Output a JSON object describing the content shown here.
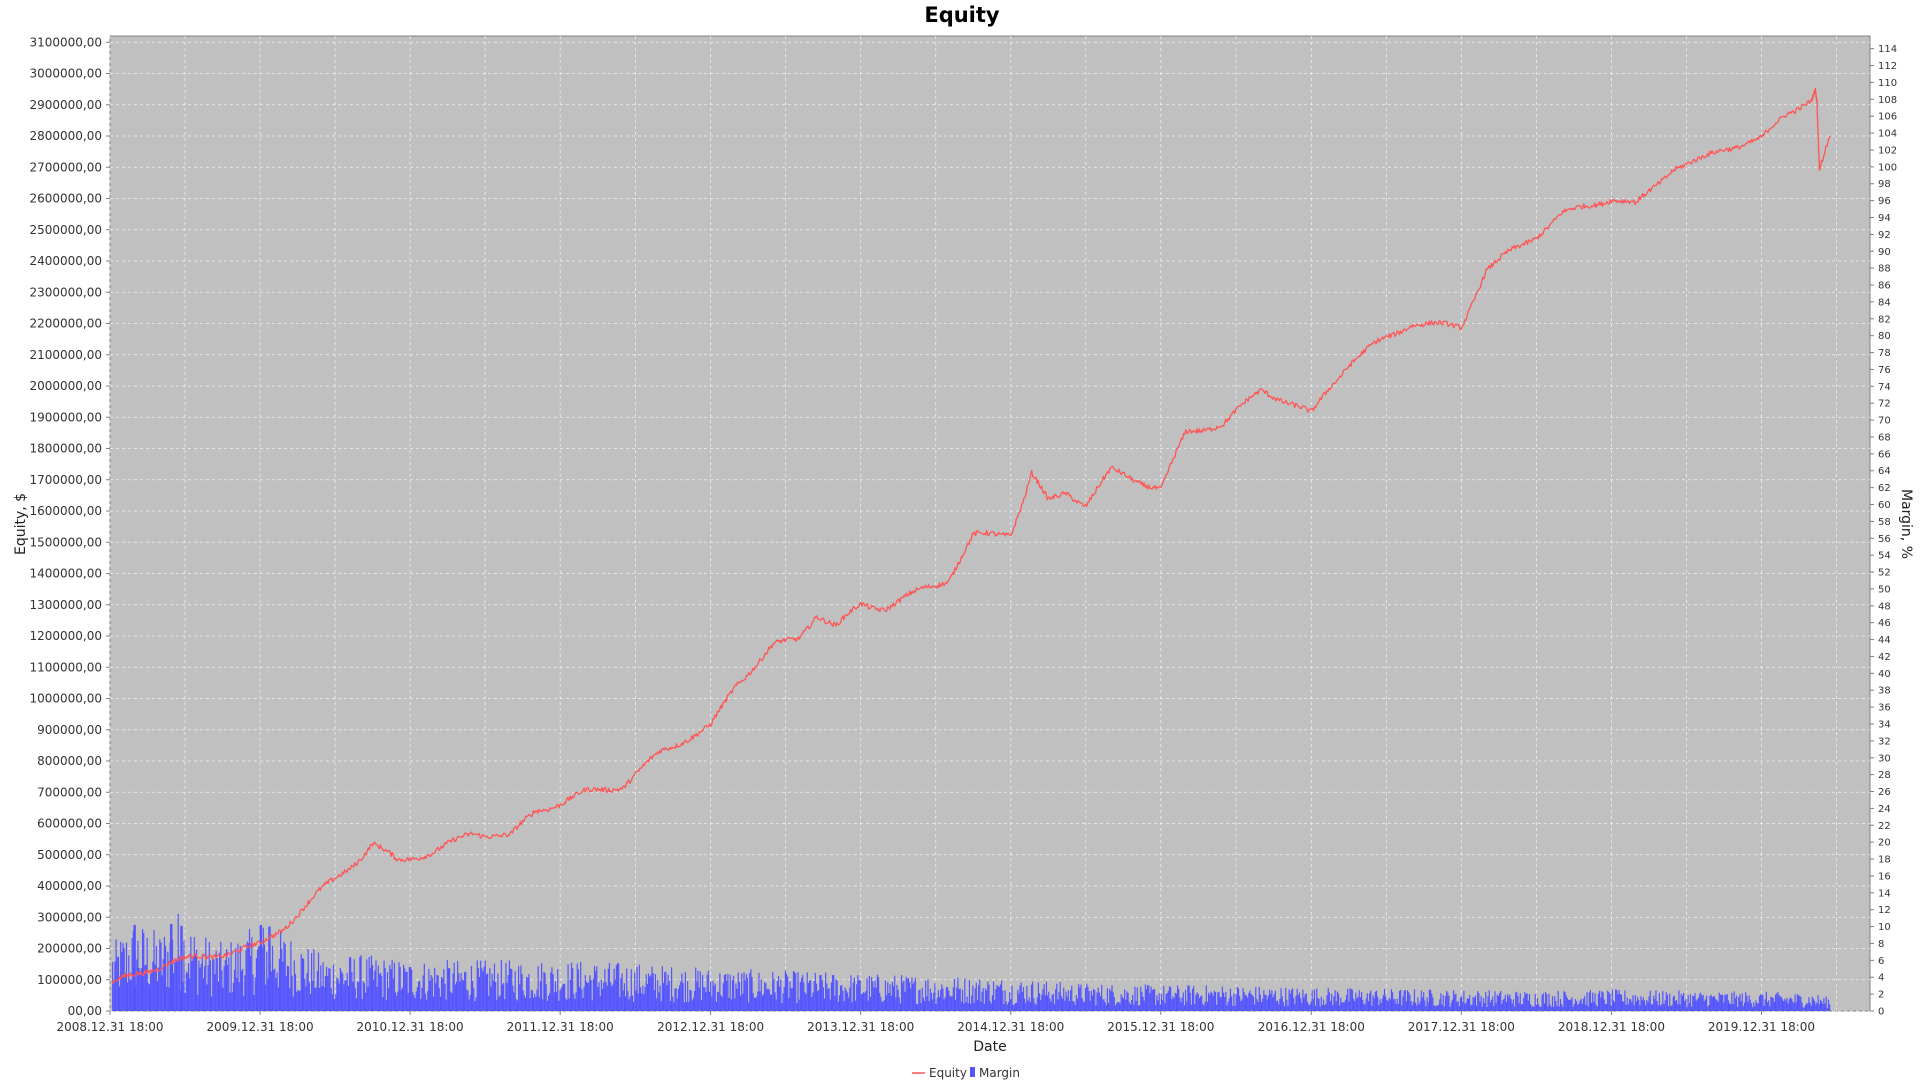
{
  "chart_data": {
    "type": "line",
    "title": "Equity",
    "xlabel": "Date",
    "ylabel": "Equity, $",
    "y2label": "Margin, %",
    "ylim": [
      0,
      3120000
    ],
    "y2lim": [
      0,
      115.5
    ],
    "xlim": [
      "2008-12-31",
      "2020-09-20"
    ],
    "y_ticks": [
      0,
      100000,
      200000,
      300000,
      400000,
      500000,
      600000,
      700000,
      800000,
      900000,
      1000000,
      1100000,
      1200000,
      1300000,
      1400000,
      1500000,
      1600000,
      1700000,
      1800000,
      1900000,
      2000000,
      2100000,
      2200000,
      2300000,
      2400000,
      2500000,
      2600000,
      2700000,
      2800000,
      2900000,
      3000000,
      3100000
    ],
    "y_tick_labels": [
      "00,00",
      "100000,00",
      "200000,00",
      "300000,00",
      "400000,00",
      "500000,00",
      "600000,00",
      "700000,00",
      "800000,00",
      "900000,00",
      "1000000,00",
      "1100000,00",
      "1200000,00",
      "1300000,00",
      "1400000,00",
      "1500000,00",
      "1600000,00",
      "1700000,00",
      "1800000,00",
      "1900000,00",
      "2000000,00",
      "2100000,00",
      "2200000,00",
      "2300000,00",
      "2400000,00",
      "2500000,00",
      "2600000,00",
      "2700000,00",
      "2800000,00",
      "2900000,00",
      "3000000,00",
      "3100000,00"
    ],
    "y2_ticks": [
      0,
      2,
      4,
      6,
      8,
      10,
      12,
      14,
      16,
      18,
      20,
      22,
      24,
      26,
      28,
      30,
      32,
      34,
      36,
      38,
      40,
      42,
      44,
      46,
      48,
      50,
      52,
      54,
      56,
      58,
      60,
      62,
      64,
      66,
      68,
      70,
      72,
      74,
      76,
      78,
      80,
      82,
      84,
      86,
      88,
      90,
      92,
      94,
      96,
      98,
      100,
      102,
      104,
      106,
      108,
      110,
      112,
      114
    ],
    "x_ticks": [
      "2008-12-31",
      "2009-12-31",
      "2010-12-31",
      "2011-12-31",
      "2012-12-31",
      "2013-12-31",
      "2014-12-31",
      "2015-12-31",
      "2016-12-31",
      "2017-12-31",
      "2018-12-31",
      "2019-12-31"
    ],
    "x_tick_labels": [
      "2008.12.31 18:00",
      "2009.12.31 18:00",
      "2010.12.31 18:00",
      "2011.12.31 18:00",
      "2012.12.31 18:00",
      "2013.12.31 18:00",
      "2014.12.31 18:00",
      "2015.12.31 18:00",
      "2016.12.31 18:00",
      "2017.12.31 18:00",
      "2018.12.31 18:00",
      "2019.12.31 18:00"
    ],
    "grid": true,
    "legend": "bottom-center",
    "series": [
      {
        "name": "Equity",
        "type": "line",
        "axis": "left",
        "color": "#ff5555",
        "x": [
          "2009-01-05",
          "2009-03-15",
          "2009-06-01",
          "2009-09-01",
          "2009-12-31",
          "2010-03-01",
          "2010-06-01",
          "2010-09-01",
          "2010-10-01",
          "2010-12-01",
          "2011-03-01",
          "2011-06-01",
          "2011-09-01",
          "2011-11-01",
          "2011-12-31",
          "2012-03-01",
          "2012-06-01",
          "2012-09-01",
          "2012-12-31",
          "2013-03-01",
          "2013-06-01",
          "2013-08-01",
          "2013-09-15",
          "2013-11-01",
          "2013-12-31",
          "2014-03-01",
          "2014-06-01",
          "2014-08-01",
          "2014-10-01",
          "2014-12-31",
          "2015-02-01",
          "2015-02-20",
          "2015-04-01",
          "2015-05-15",
          "2015-07-01",
          "2015-09-01",
          "2015-12-31",
          "2016-03-01",
          "2016-06-01",
          "2016-09-01",
          "2016-12-31",
          "2017-02-15",
          "2017-04-01",
          "2017-06-01",
          "2017-09-01",
          "2017-12-31",
          "2018-03-01",
          "2018-05-01",
          "2018-07-01",
          "2018-09-01",
          "2018-12-31",
          "2019-03-01",
          "2019-06-01",
          "2019-08-01",
          "2019-10-01",
          "2019-12-31",
          "2020-03-01",
          "2020-05-01",
          "2020-05-10",
          "2020-05-14",
          "2020-05-20",
          "2020-06-15"
        ],
        "values": [
          90000,
          120000,
          160000,
          175000,
          210000,
          270000,
          390000,
          490000,
          535000,
          480000,
          510000,
          570000,
          560000,
          640000,
          665000,
          700000,
          720000,
          830000,
          910000,
          1040000,
          1170000,
          1190000,
          1270000,
          1230000,
          1300000,
          1290000,
          1350000,
          1380000,
          1520000,
          1530000,
          1640000,
          1720000,
          1630000,
          1660000,
          1620000,
          1730000,
          1670000,
          1850000,
          1880000,
          1990000,
          1910000,
          2000000,
          2070000,
          2130000,
          2200000,
          2190000,
          2370000,
          2430000,
          2480000,
          2550000,
          2600000,
          2580000,
          2700000,
          2720000,
          2760000,
          2790000,
          2870000,
          2920000,
          2950000,
          2910000,
          2690000,
          2800000
        ]
      },
      {
        "name": "Margin",
        "type": "bar",
        "axis": "right",
        "color": "#5555ff",
        "x": [
          "2009-01-05",
          "2009-03-01",
          "2009-05-01",
          "2009-06-15",
          "2009-08-01",
          "2009-10-01",
          "2010-01-15",
          "2010-03-01",
          "2010-06-01",
          "2010-09-01",
          "2011-01-01",
          "2011-06-01",
          "2012-01-01",
          "2012-06-01",
          "2013-01-01",
          "2013-06-01",
          "2014-01-01",
          "2014-06-01",
          "2015-01-01",
          "2015-06-01",
          "2016-01-01",
          "2016-06-01",
          "2017-01-01",
          "2017-06-01",
          "2018-01-01",
          "2018-06-01",
          "2019-01-01",
          "2019-06-01",
          "2020-01-01",
          "2020-05-01",
          "2020-06-15"
        ],
        "values": [
          6,
          8,
          7,
          9,
          7,
          6,
          8,
          7,
          5,
          5,
          4.5,
          4.5,
          4.5,
          4.3,
          3.8,
          3.6,
          3.3,
          3.2,
          2.9,
          2.5,
          2.3,
          2.3,
          2.1,
          2.0,
          1.9,
          1.8,
          1.9,
          1.8,
          1.7,
          1.6,
          1.2
        ],
        "peaks": [
          {
            "x": "2009-02-26",
            "value": 10.2
          },
          {
            "x": "2009-05-26",
            "value": 10.3
          },
          {
            "x": "2009-06-20",
            "value": 10.1
          },
          {
            "x": "2009-12-30",
            "value": 10.2
          },
          {
            "x": "2010-01-20",
            "value": 10.0
          }
        ]
      }
    ]
  }
}
